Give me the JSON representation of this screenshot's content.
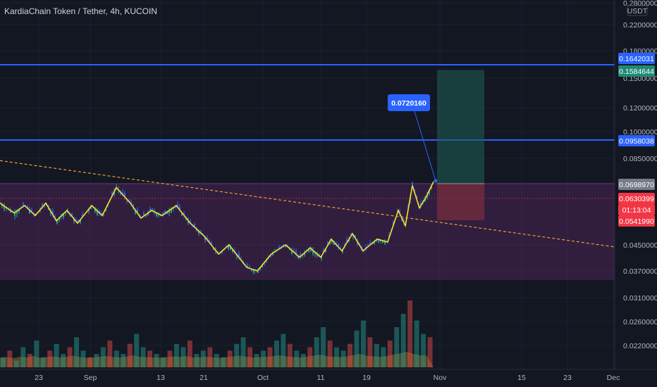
{
  "header": {
    "title": "KardiaChain Token / Tether, 4h, KUCOIN"
  },
  "chart_data": {
    "type": "candlestick",
    "currency": "USDT",
    "y_ticks": [
      {
        "v": 0.28,
        "label": "0.2800000"
      },
      {
        "v": 0.22,
        "label": "0.2200000"
      },
      {
        "v": 0.18,
        "label": "0.1800000"
      },
      {
        "v": 0.15,
        "label": "0.1500000"
      },
      {
        "v": 0.12,
        "label": "0.1200000"
      },
      {
        "v": 0.1,
        "label": "0.1000000"
      },
      {
        "v": 0.085,
        "label": "0.0850000"
      },
      {
        "v": 0.045,
        "label": "0.0450000"
      },
      {
        "v": 0.037,
        "label": "0.0370000"
      },
      {
        "v": 0.031,
        "label": "0.0310000"
      },
      {
        "v": 0.026,
        "label": "0.0260000"
      },
      {
        "v": 0.022,
        "label": "0.0220000"
      }
    ],
    "x_ticks": [
      "23",
      "Sep",
      "13",
      "21",
      "Oct",
      "11",
      "19",
      "Nov",
      "15",
      "23",
      "Dec"
    ],
    "price_tags": [
      {
        "label": "0.1642031",
        "color": "#2962ff",
        "v": 0.1642031
      },
      {
        "label": "0.1584644",
        "color": "#1f8a73",
        "v": 0.1584644
      },
      {
        "label": "0.0958038",
        "color": "#2962ff",
        "v": 0.0958038
      },
      {
        "label": "0.0698970",
        "color": "#787b86",
        "v": 0.069897
      },
      {
        "label": "0.0630399",
        "color": "#f23645",
        "v": 0.0630399
      },
      {
        "label": "01:13:04",
        "color": "#f23645",
        "v": 0.0585
      },
      {
        "label": "0.0541990",
        "color": "#f23645",
        "v": 0.054199
      }
    ],
    "horizontal_levels": [
      0.1642031,
      0.0958038
    ],
    "zone": {
      "top": 0.069897,
      "bottom": 0.0345
    },
    "trendline": {
      "from": [
        0,
        0.0835
      ],
      "to": [
        1,
        0.0443
      ]
    },
    "position": {
      "entry": 0.069897,
      "target": 0.1584644,
      "stop": 0.054199
    },
    "callout": {
      "label": "0.0720160",
      "v": 0.072016
    },
    "zigzag": [
      [
        0.0,
        0.061
      ],
      [
        0.02,
        0.057
      ],
      [
        0.035,
        0.06
      ],
      [
        0.05,
        0.056
      ],
      [
        0.065,
        0.061
      ],
      [
        0.08,
        0.054
      ],
      [
        0.095,
        0.058
      ],
      [
        0.11,
        0.053
      ],
      [
        0.13,
        0.06
      ],
      [
        0.145,
        0.056
      ],
      [
        0.165,
        0.068
      ],
      [
        0.185,
        0.061
      ],
      [
        0.2,
        0.055
      ],
      [
        0.215,
        0.058
      ],
      [
        0.23,
        0.056
      ],
      [
        0.25,
        0.06
      ],
      [
        0.27,
        0.053
      ],
      [
        0.29,
        0.048
      ],
      [
        0.31,
        0.042
      ],
      [
        0.325,
        0.045
      ],
      [
        0.35,
        0.038
      ],
      [
        0.365,
        0.037
      ],
      [
        0.385,
        0.042
      ],
      [
        0.405,
        0.045
      ],
      [
        0.425,
        0.041
      ],
      [
        0.44,
        0.044
      ],
      [
        0.455,
        0.041
      ],
      [
        0.47,
        0.047
      ],
      [
        0.485,
        0.043
      ],
      [
        0.5,
        0.049
      ],
      [
        0.515,
        0.043
      ],
      [
        0.535,
        0.047
      ],
      [
        0.55,
        0.046
      ],
      [
        0.565,
        0.058
      ],
      [
        0.575,
        0.052
      ],
      [
        0.585,
        0.069
      ],
      [
        0.595,
        0.059
      ],
      [
        0.605,
        0.064
      ],
      [
        0.615,
        0.071
      ]
    ],
    "volume": [
      3,
      5,
      2,
      6,
      4,
      8,
      3,
      5,
      7,
      4,
      6,
      9,
      5,
      3,
      4,
      6,
      8,
      5,
      4,
      7,
      10,
      6,
      5,
      4,
      3,
      5,
      7,
      6,
      8,
      4,
      5,
      6,
      4,
      3,
      5,
      7,
      9,
      6,
      4,
      5,
      6,
      8,
      10,
      7,
      5,
      4,
      6,
      9,
      12,
      8,
      6,
      5,
      7,
      11,
      14,
      9,
      7,
      6,
      8,
      12,
      16,
      20,
      14,
      10,
      9
    ]
  }
}
